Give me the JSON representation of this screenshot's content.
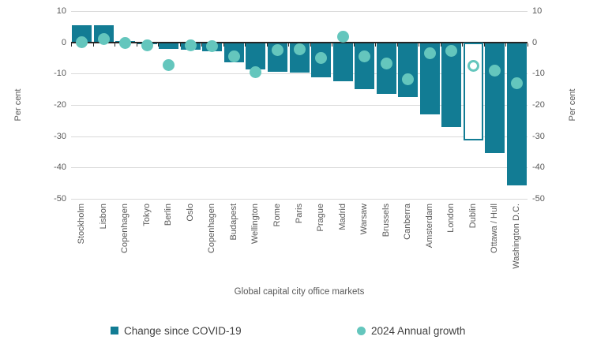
{
  "chart_data": {
    "type": "bar",
    "overlay": "scatter",
    "categories": [
      "Stockholm",
      "Lisbon",
      "Copenhagen",
      "Tokyo",
      "Berlin",
      "Oslo",
      "Copenhagen",
      "Budapest",
      "Wellington",
      "Rome",
      "Paris",
      "Prague",
      "Madrid",
      "Warsaw",
      "Brussels",
      "Canberra",
      "Amsterdam",
      "London",
      "Dublin",
      "Ottawa / Hull",
      "Washington D.C."
    ],
    "series": [
      {
        "name": "Change since COVID-19",
        "type": "bar",
        "values": [
          5.5,
          5.5,
          0.4,
          -0.6,
          -2.1,
          -2.4,
          -2.9,
          -6.4,
          -8.6,
          -9.4,
          -9.7,
          -11.1,
          -12.5,
          -14.9,
          -16.4,
          -17.5,
          -23.0,
          -27.0,
          -31.4,
          -35.3,
          -45.7
        ]
      },
      {
        "name": "2024 Annual growth",
        "type": "scatter",
        "values": [
          0.0,
          1.1,
          -0.2,
          -0.9,
          -7.3,
          -0.9,
          -1.3,
          -4.4,
          -9.5,
          -2.5,
          -2.3,
          -4.9,
          1.9,
          -4.4,
          -6.7,
          -11.9,
          -3.6,
          -2.8,
          -7.4,
          -9.1,
          -13.0
        ]
      }
    ],
    "highlighted_category": "Dublin",
    "highlight_style": "hollow-outline",
    "xlabel": "Global capital city office markets",
    "ylabel_left": "Per cent",
    "ylabel_right": "Per cent",
    "ylim": [
      -50,
      10
    ],
    "yticks": [
      10,
      0,
      -10,
      -20,
      -30,
      -40,
      -50
    ],
    "grid": true,
    "legend_position": "bottom",
    "colors": {
      "bar": "#127c94",
      "dot": "#64c6bd",
      "gridline": "#d9d9d9",
      "axis": "#262626",
      "tick_text": "#595959",
      "legend_text": "#404040"
    }
  }
}
